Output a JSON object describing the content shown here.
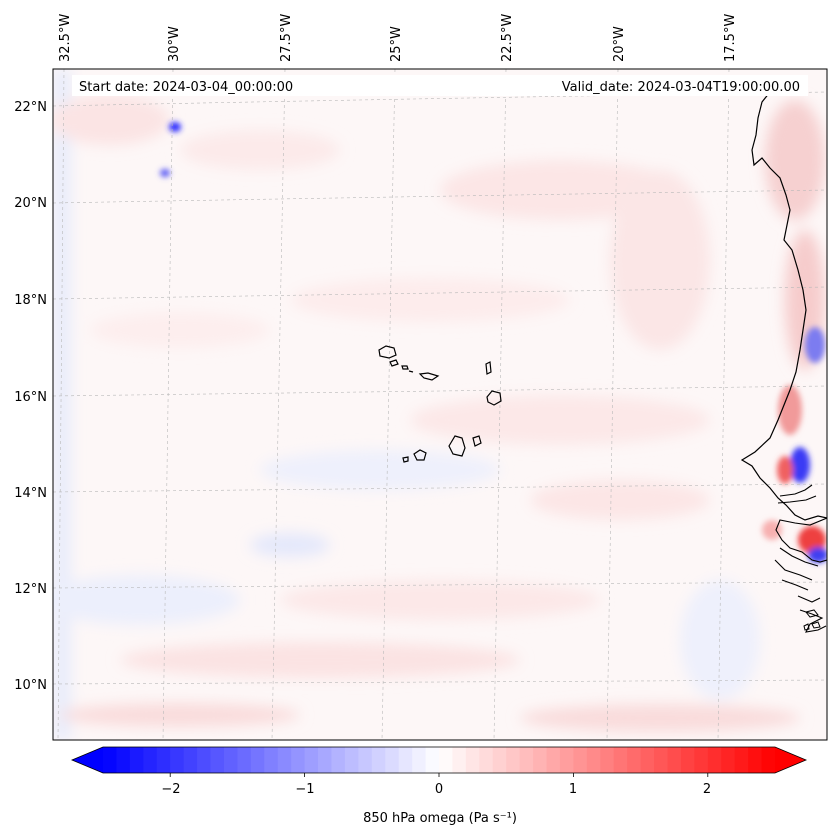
{
  "map": {
    "start_label": "Start date: 2024-03-04_00:00:00",
    "valid_label": "Valid_date: 2024-03-04T19:00:00.00",
    "lon_ticks": [
      "32.5°W",
      "30°W",
      "27.5°W",
      "25°W",
      "22.5°W",
      "20°W",
      "17.5°W"
    ],
    "lat_ticks": [
      "22°N",
      "20°N",
      "18°N",
      "16°N",
      "14°N",
      "12°N",
      "10°N"
    ],
    "gridlines": true,
    "coastline_color": "#000000"
  },
  "colorbar": {
    "label": "850 hPa omega (Pa s⁻¹)",
    "ticks": [
      "−2",
      "−1",
      "0",
      "1",
      "2"
    ],
    "tick_values": [
      -2,
      -1,
      0,
      1,
      2
    ],
    "range": [
      -2.5,
      2.5
    ],
    "colormap": "bwr",
    "extend": "both",
    "low_color": "#0000ff",
    "mid_color": "#ffffff",
    "high_color": "#ff0000"
  }
}
